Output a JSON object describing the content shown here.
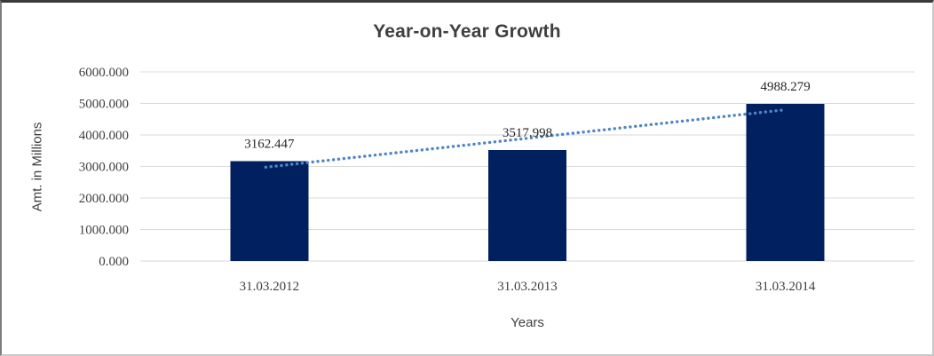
{
  "chart_data": {
    "type": "bar",
    "title": "Year-on-Year Growth",
    "xlabel": "Years",
    "ylabel": "Amt. in Millions",
    "categories": [
      "31.03.2012",
      "31.03.2013",
      "31.03.2014"
    ],
    "values": [
      3162.447,
      3517.998,
      4988.279
    ],
    "data_labels": [
      "3162.447",
      "3517.998",
      "4988.279"
    ],
    "y_ticks": [
      "0.000",
      "1000.000",
      "2000.000",
      "3000.000",
      "4000.000",
      "5000.000",
      "6000.000"
    ],
    "ylim": [
      0,
      6000
    ],
    "grid": true,
    "trendline": {
      "type": "linear",
      "style": "dotted"
    },
    "colors": {
      "bar": "#002060",
      "trendline": "#4f86c6",
      "gridline": "#d9d9d9",
      "text": "#3f3f3f"
    }
  }
}
